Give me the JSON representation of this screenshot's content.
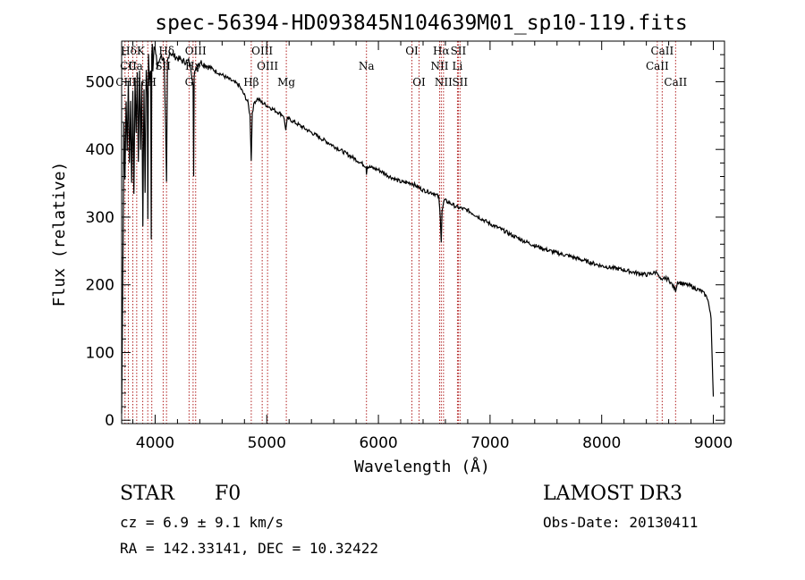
{
  "chart_data": {
    "type": "line",
    "title": "spec-56394-HD093845N104639M01_sp10-119.fits",
    "xlabel": "Wavelength (Å)",
    "ylabel": "Flux (relative)",
    "xlim": [
      3700,
      9100
    ],
    "ylim": [
      -5,
      560
    ],
    "xticks": [
      4000,
      5000,
      6000,
      7000,
      8000,
      9000
    ],
    "yticks": [
      0,
      100,
      200,
      300,
      400,
      500
    ],
    "spectrum": {
      "name": "flux",
      "x": [
        3700,
        3710,
        3720,
        3730,
        3740,
        3750,
        3760,
        3770,
        3780,
        3790,
        3800,
        3810,
        3820,
        3830,
        3840,
        3850,
        3860,
        3870,
        3880,
        3890,
        3900,
        3910,
        3920,
        3930,
        3935,
        3940,
        3950,
        3960,
        3965,
        3970,
        3975,
        3980,
        3990,
        4000,
        4010,
        4020,
        4050,
        4080,
        4095,
        4102,
        4110,
        4130,
        4150,
        4200,
        4250,
        4300,
        4320,
        4340,
        4345,
        4350,
        4360,
        4400,
        4450,
        4500,
        4550,
        4600,
        4650,
        4700,
        4750,
        4800,
        4830,
        4850,
        4861,
        4870,
        4890,
        4920,
        4950,
        5000,
        5050,
        5100,
        5150,
        5170,
        5184,
        5200,
        5250,
        5300,
        5400,
        5500,
        5600,
        5700,
        5800,
        5890,
        5893,
        5900,
        6000,
        6100,
        6200,
        6300,
        6400,
        6500,
        6540,
        6555,
        6563,
        6570,
        6590,
        6650,
        6700,
        6800,
        6900,
        7000,
        7100,
        7200,
        7300,
        7400,
        7500,
        7600,
        7700,
        7800,
        7900,
        8000,
        8100,
        8200,
        8300,
        8400,
        8480,
        8498,
        8510,
        8542,
        8560,
        8600,
        8662,
        8680,
        8700,
        8800,
        8900,
        8950,
        8980,
        8995,
        9000
      ],
      "values": [
        10,
        200,
        440,
        360,
        470,
        400,
        500,
        380,
        470,
        350,
        490,
        330,
        510,
        420,
        515,
        380,
        520,
        400,
        500,
        290,
        490,
        340,
        520,
        480,
        300,
        540,
        500,
        520,
        270,
        540,
        560,
        520,
        550,
        545,
        540,
        520,
        540,
        530,
        420,
        350,
        530,
        545,
        540,
        535,
        530,
        530,
        520,
        500,
        360,
        505,
        520,
        530,
        525,
        520,
        515,
        510,
        505,
        500,
        495,
        480,
        470,
        450,
        385,
        455,
        470,
        475,
        470,
        465,
        460,
        455,
        450,
        430,
        445,
        445,
        440,
        435,
        425,
        415,
        405,
        395,
        385,
        375,
        365,
        375,
        370,
        360,
        352,
        350,
        340,
        335,
        330,
        300,
        265,
        310,
        325,
        320,
        315,
        310,
        300,
        290,
        282,
        273,
        265,
        258,
        252,
        247,
        243,
        238,
        233,
        228,
        225,
        222,
        218,
        215,
        218,
        220,
        212,
        205,
        210,
        208,
        192,
        205,
        203,
        198,
        190,
        180,
        150,
        60,
        35
      ]
    },
    "lines": [
      {
        "label": "HδK",
        "wave": 3800,
        "row": 0
      },
      {
        "label": "CII",
        "wave": 3760,
        "row": 1
      },
      {
        "label": "Ca",
        "wave": 3825,
        "row": 1
      },
      {
        "label": "CIII",
        "wave": 3740,
        "row": 2
      },
      {
        "label": "Hε",
        "wave": 3860,
        "row": 2
      },
      {
        "label": "H",
        "wave": 3970,
        "row": 2
      },
      {
        "label": "SII",
        "wave": 4070,
        "row": 1
      },
      {
        "label": "Hδ",
        "wave": 4102,
        "row": 0
      },
      {
        "label": "OIII",
        "wave": 4363,
        "row": 0
      },
      {
        "label": "Hγ",
        "wave": 4340,
        "row": 1
      },
      {
        "label": "G",
        "wave": 4304,
        "row": 2
      },
      {
        "label": "OIII",
        "wave": 4959,
        "row": 0
      },
      {
        "label": "OIII",
        "wave": 5007,
        "row": 1
      },
      {
        "label": "Hβ",
        "wave": 4861,
        "row": 2
      },
      {
        "label": "Mg",
        "wave": 5175,
        "row": 2
      },
      {
        "label": "Na",
        "wave": 5893,
        "row": 1
      },
      {
        "label": "OI",
        "wave": 6300,
        "row": 0
      },
      {
        "label": "OI",
        "wave": 6364,
        "row": 2
      },
      {
        "label": "Hα",
        "wave": 6563,
        "row": 0
      },
      {
        "label": "SII",
        "wave": 6716,
        "row": 0
      },
      {
        "label": "NII",
        "wave": 6548,
        "row": 1
      },
      {
        "label": "Li",
        "wave": 6708,
        "row": 1
      },
      {
        "label": "NII",
        "wave": 6583,
        "row": 2
      },
      {
        "label": "SII",
        "wave": 6731,
        "row": 2
      },
      {
        "label": "CaII",
        "wave": 8542,
        "row": 0
      },
      {
        "label": "CaII",
        "wave": 8498,
        "row": 1
      },
      {
        "label": "CaII",
        "wave": 8662,
        "row": 2
      }
    ],
    "line_waves": [
      3730,
      3760,
      3800,
      3835,
      3889,
      3934,
      3970,
      4072,
      4102,
      4304,
      4340,
      4363,
      4861,
      4959,
      5007,
      5175,
      5893,
      6300,
      6364,
      6548,
      6563,
      6583,
      6708,
      6716,
      6731,
      8498,
      8542,
      8662
    ]
  },
  "info": {
    "class": "STAR",
    "subclass": "F0",
    "survey": "LAMOST DR3",
    "cz": "cz = 6.9 ± 9.1 km/s",
    "obs_date": "Obs-Date: 20130411",
    "coords": "RA = 142.33141, DEC =  10.32422"
  },
  "colors": {
    "line_marker": "#b22222",
    "spectrum": "#000000"
  }
}
